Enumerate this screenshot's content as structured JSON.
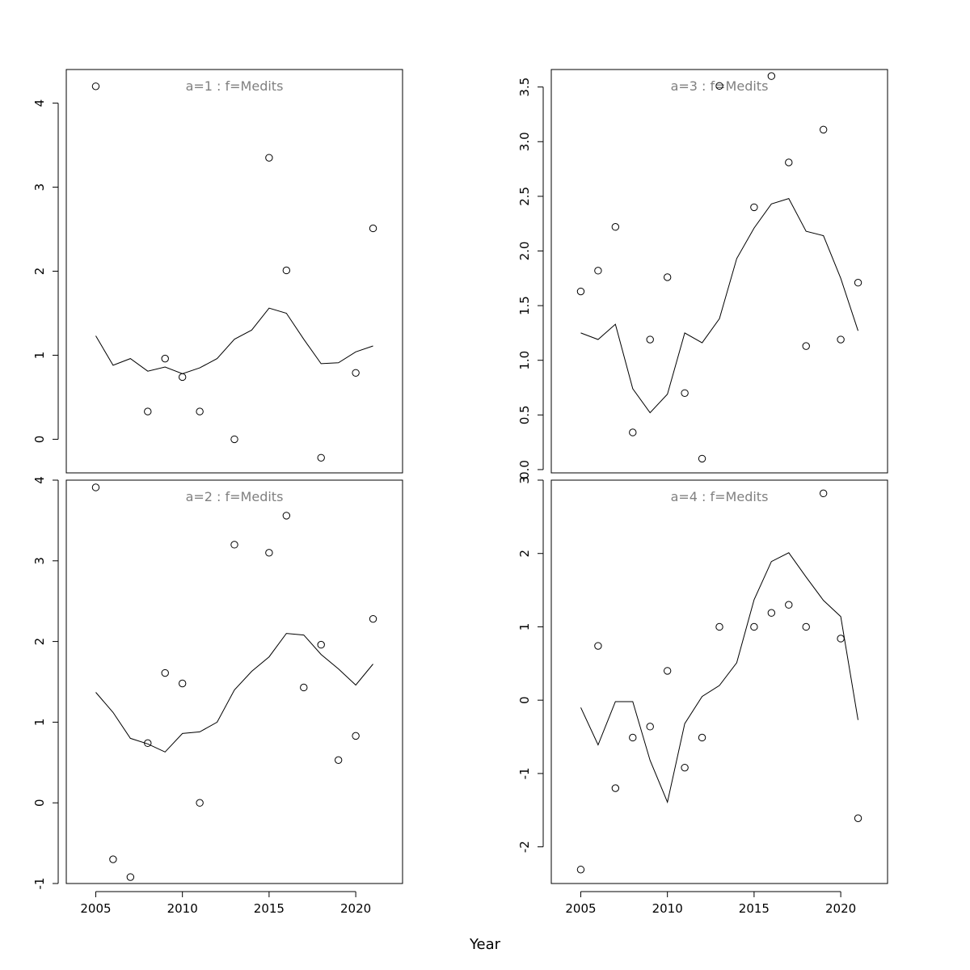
{
  "chart_data": {
    "type": "scatter",
    "xlabel": "Year",
    "xticks": [
      2005,
      2010,
      2015,
      2020
    ],
    "xlim": [
      2003.3,
      2022.7
    ],
    "panels": [
      {
        "title": "a=1  :  f=Medits",
        "ylim": [
          -0.4,
          4.4
        ],
        "yticks": [
          0,
          1,
          2,
          3,
          4
        ],
        "ytick_labels": [
          "0",
          "1",
          "2",
          "3",
          "4"
        ],
        "points": {
          "x": [
            2005,
            2008,
            2009,
            2010,
            2011,
            2013,
            2015,
            2016,
            2018,
            2020,
            2021
          ],
          "y": [
            4.2,
            0.33,
            0.96,
            0.74,
            0.33,
            0.0,
            3.35,
            2.01,
            -0.22,
            0.79,
            2.51
          ]
        },
        "line": {
          "x": [
            2005,
            2006,
            2007,
            2008,
            2009,
            2010,
            2011,
            2012,
            2013,
            2014,
            2015,
            2016,
            2017,
            2018,
            2019,
            2020,
            2021
          ],
          "y": [
            1.23,
            0.88,
            0.96,
            0.81,
            0.86,
            0.78,
            0.85,
            0.96,
            1.19,
            1.3,
            1.56,
            1.5,
            1.19,
            0.9,
            0.91,
            1.04,
            1.11
          ]
        }
      },
      {
        "title": "a=3  :  f=Medits",
        "ylim": [
          -0.03,
          3.66
        ],
        "yticks": [
          0.0,
          0.5,
          1.0,
          1.5,
          2.0,
          2.5,
          3.0,
          3.5
        ],
        "ytick_labels": [
          "0.0",
          "0.5",
          "1.0",
          "1.5",
          "2.0",
          "2.5",
          "3.0",
          "3.5"
        ],
        "points": {
          "x": [
            2005,
            2006,
            2007,
            2008,
            2009,
            2010,
            2011,
            2012,
            2013,
            2015,
            2016,
            2017,
            2018,
            2019,
            2020,
            2021
          ],
          "y": [
            1.63,
            1.82,
            2.22,
            0.34,
            1.19,
            1.76,
            0.7,
            0.1,
            3.51,
            2.4,
            3.6,
            2.81,
            1.13,
            3.11,
            1.19,
            1.71
          ]
        },
        "line": {
          "x": [
            2005,
            2006,
            2007,
            2008,
            2009,
            2010,
            2011,
            2012,
            2013,
            2014,
            2015,
            2016,
            2017,
            2018,
            2019,
            2020,
            2021
          ],
          "y": [
            1.25,
            1.19,
            1.33,
            0.74,
            0.52,
            0.69,
            1.25,
            1.16,
            1.38,
            1.93,
            2.21,
            2.43,
            2.48,
            2.18,
            2.14,
            1.75,
            1.27
          ]
        }
      },
      {
        "title": "a=2  :  f=Medits",
        "ylim": [
          -1.0,
          4.0
        ],
        "yticks": [
          -1,
          0,
          1,
          2,
          3,
          4
        ],
        "ytick_labels": [
          "-1",
          "0",
          "1",
          "2",
          "3",
          "4"
        ],
        "points": {
          "x": [
            2005,
            2006,
            2007,
            2008,
            2009,
            2010,
            2011,
            2013,
            2015,
            2016,
            2017,
            2018,
            2019,
            2020,
            2021
          ],
          "y": [
            3.91,
            -0.7,
            -0.92,
            0.74,
            1.61,
            1.48,
            0.0,
            3.2,
            3.1,
            3.56,
            1.43,
            1.96,
            0.53,
            0.83,
            2.28
          ]
        },
        "line": {
          "x": [
            2005,
            2006,
            2007,
            2008,
            2009,
            2010,
            2011,
            2012,
            2013,
            2014,
            2015,
            2016,
            2017,
            2018,
            2019,
            2020,
            2021
          ],
          "y": [
            1.37,
            1.12,
            0.8,
            0.73,
            0.63,
            0.86,
            0.88,
            1.0,
            1.4,
            1.63,
            1.81,
            2.1,
            2.08,
            1.84,
            1.66,
            1.46,
            1.72
          ]
        }
      },
      {
        "title": "a=4  :  f=Medits",
        "ylim": [
          -2.5,
          3.0
        ],
        "yticks": [
          -2,
          -1,
          0,
          1,
          2,
          3
        ],
        "ytick_labels": [
          "-2",
          "-1",
          "0",
          "1",
          "2",
          "3"
        ],
        "points": {
          "x": [
            2005,
            2006,
            2007,
            2008,
            2009,
            2010,
            2011,
            2012,
            2013,
            2015,
            2016,
            2017,
            2018,
            2019,
            2020,
            2021
          ],
          "y": [
            -2.31,
            0.74,
            -1.2,
            -0.51,
            -0.36,
            0.4,
            -0.92,
            -0.51,
            1.0,
            1.0,
            1.19,
            1.3,
            1.0,
            2.82,
            0.84,
            -1.61
          ]
        },
        "line": {
          "x": [
            2005,
            2006,
            2007,
            2008,
            2009,
            2010,
            2011,
            2012,
            2013,
            2014,
            2015,
            2016,
            2017,
            2018,
            2019,
            2020,
            2021
          ],
          "y": [
            -0.1,
            -0.61,
            -0.02,
            -0.02,
            -0.82,
            -1.39,
            -0.32,
            0.05,
            0.2,
            0.51,
            1.37,
            1.89,
            2.01,
            1.68,
            1.36,
            1.14,
            -0.27
          ]
        }
      }
    ]
  }
}
